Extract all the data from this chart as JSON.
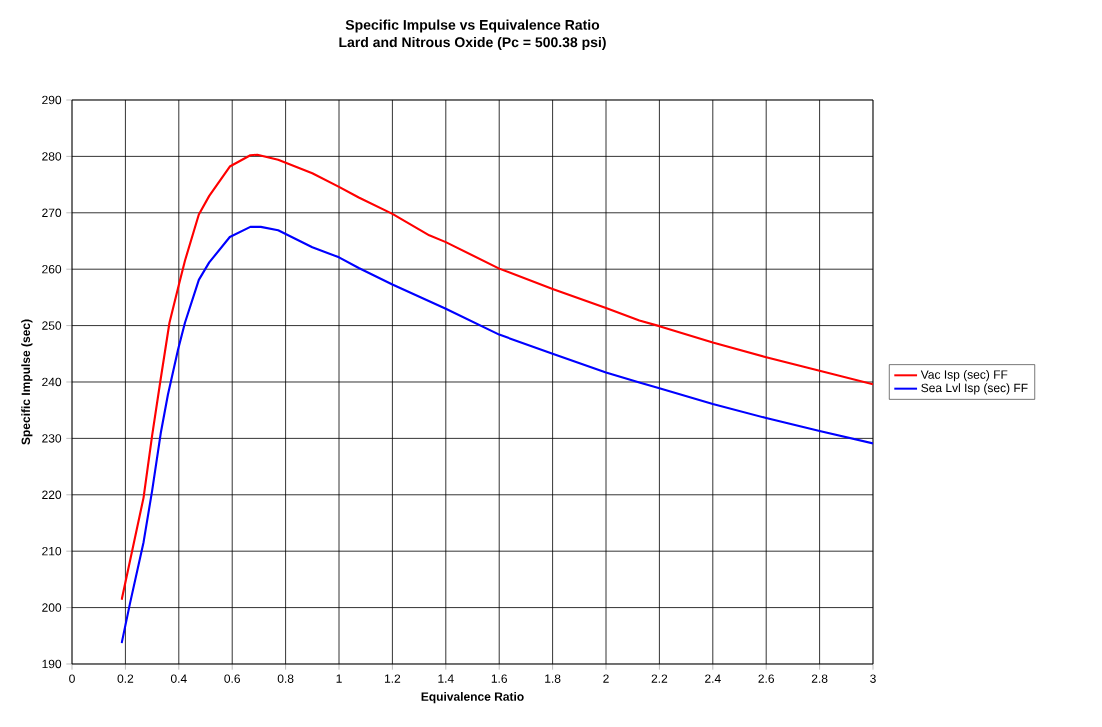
{
  "chart_data": {
    "type": "line",
    "title": "Specific Impulse vs Equivalence Ratio",
    "subtitle": "Lard and Nitrous Oxide (Pc = 500.38 psi)",
    "xlabel": "Equivalence Ratio",
    "ylabel": "Specific Impulse (sec)",
    "xlim": [
      0,
      3
    ],
    "ylim": [
      190,
      290
    ],
    "xticks": [
      0,
      0.2,
      0.4,
      0.6,
      0.8,
      1,
      1.2,
      1.4,
      1.6,
      1.8,
      2,
      2.2,
      2.4,
      2.6,
      2.8,
      3
    ],
    "yticks": [
      190,
      200,
      210,
      220,
      230,
      240,
      250,
      260,
      270,
      280,
      290
    ],
    "grid": true,
    "legend": "right",
    "marker": "none",
    "line_style": "solid",
    "series": [
      {
        "name": "Vac Isp (sec)  FF",
        "color": "#ff0000",
        "x": [
          0.186,
          0.268,
          0.3,
          0.333,
          0.365,
          0.4,
          0.423,
          0.475,
          0.514,
          0.591,
          0.668,
          0.694,
          0.772,
          0.9,
          1.0,
          1.074,
          1.2,
          1.338,
          1.4,
          1.6,
          1.8,
          2.0,
          2.125,
          2.2,
          2.4,
          2.6,
          2.8,
          3.0
        ],
        "values": [
          201.4,
          219.5,
          230.5,
          240.8,
          250.5,
          257.2,
          261.5,
          269.7,
          273.0,
          278.2,
          280.2,
          280.3,
          279.4,
          277.0,
          274.6,
          272.7,
          269.8,
          266.0,
          264.8,
          260.1,
          256.5,
          253.1,
          250.9,
          249.9,
          247.0,
          244.4,
          242.0,
          239.6
        ]
      },
      {
        "name": "Sea Lvl Isp (sec)  FF",
        "color": "#0000ff",
        "x": [
          0.186,
          0.217,
          0.268,
          0.3,
          0.333,
          0.359,
          0.397,
          0.423,
          0.475,
          0.514,
          0.591,
          0.668,
          0.707,
          0.772,
          0.9,
          1.0,
          1.074,
          1.2,
          1.4,
          1.6,
          1.8,
          2.0,
          2.125,
          2.2,
          2.4,
          2.6,
          2.8,
          3.0
        ],
        "values": [
          193.7,
          200.7,
          211.6,
          220.7,
          231.1,
          237.7,
          245.7,
          250.5,
          258.1,
          261.2,
          265.7,
          267.5,
          267.5,
          266.9,
          263.9,
          262.1,
          260.2,
          257.3,
          253.0,
          248.4,
          245.0,
          241.7,
          239.9,
          238.9,
          236.1,
          233.6,
          231.3,
          229.1
        ]
      }
    ]
  }
}
